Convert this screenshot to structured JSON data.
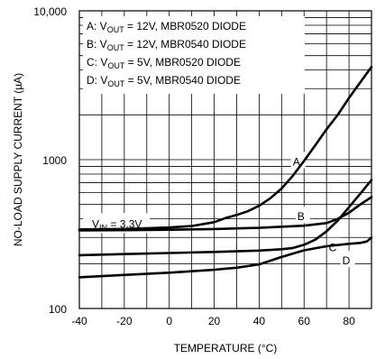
{
  "chart_data": {
    "type": "line",
    "title": "",
    "xlabel": "TEMPERATURE (°C)",
    "ylabel": "NO-LOAD SUPPLY CURRENT (µA)",
    "xlim": [
      -40,
      90
    ],
    "ylim": [
      100,
      10000
    ],
    "yscale": "log",
    "grid": true,
    "x_ticks": [
      -40,
      -20,
      0,
      20,
      40,
      60,
      80
    ],
    "x_tick_labels": [
      "-40",
      "-20",
      "0",
      "20",
      "40",
      "60",
      "80"
    ],
    "y_ticks": [
      100,
      1000,
      10000
    ],
    "y_tick_labels": [
      "100",
      "1000",
      "10,000"
    ],
    "legend": [
      {
        "key": "A",
        "main": "V",
        "sub": "OUT",
        "rest": " = 12V, MBR0520 DIODE",
        "prefix": "A: "
      },
      {
        "key": "B",
        "main": "V",
        "sub": "OUT",
        "rest": " = 12V, MBR0540 DIODE",
        "prefix": "B: "
      },
      {
        "key": "C",
        "main": "V",
        "sub": "OUT",
        "rest": " = 5V, MBR0520 DIODE",
        "prefix": "C: "
      },
      {
        "key": "D",
        "main": "V",
        "sub": "OUT",
        "rest": " = 5V, MBR0540 DIODE",
        "prefix": "D: "
      }
    ],
    "annotation": {
      "main": "V",
      "sub": "IN",
      "rest": " = 3.3V"
    },
    "series": [
      {
        "name": "A",
        "label_at": [
          55,
          980
        ],
        "x": [
          -40,
          -20,
          0,
          10,
          20,
          25,
          30,
          35,
          40,
          45,
          50,
          55,
          60,
          65,
          70,
          75,
          80,
          85,
          90
        ],
        "y": [
          340,
          342,
          350,
          358,
          380,
          405,
          425,
          450,
          490,
          550,
          640,
          780,
          980,
          1250,
          1600,
          2000,
          2600,
          3300,
          4200
        ]
      },
      {
        "name": "B",
        "label_at": [
          57,
          420
        ],
        "x": [
          -40,
          -20,
          0,
          20,
          40,
          60,
          70,
          75,
          80,
          85,
          90
        ],
        "y": [
          335,
          336,
          338,
          342,
          348,
          360,
          375,
          400,
          440,
          500,
          560
        ]
      },
      {
        "name": "C",
        "label_at": [
          71,
          260
        ],
        "x": [
          -40,
          -20,
          0,
          20,
          40,
          50,
          55,
          60,
          65,
          70,
          75,
          80,
          85,
          90
        ],
        "y": [
          228,
          232,
          236,
          240,
          245,
          250,
          255,
          268,
          290,
          330,
          390,
          480,
          590,
          730
        ]
      },
      {
        "name": "D",
        "label_at": [
          77,
          212
        ],
        "x": [
          -40,
          -20,
          0,
          20,
          30,
          40,
          50,
          60,
          70,
          80,
          85,
          88,
          90
        ],
        "y": [
          162,
          168,
          174,
          182,
          188,
          198,
          222,
          246,
          262,
          272,
          276,
          282,
          300
        ]
      }
    ]
  }
}
